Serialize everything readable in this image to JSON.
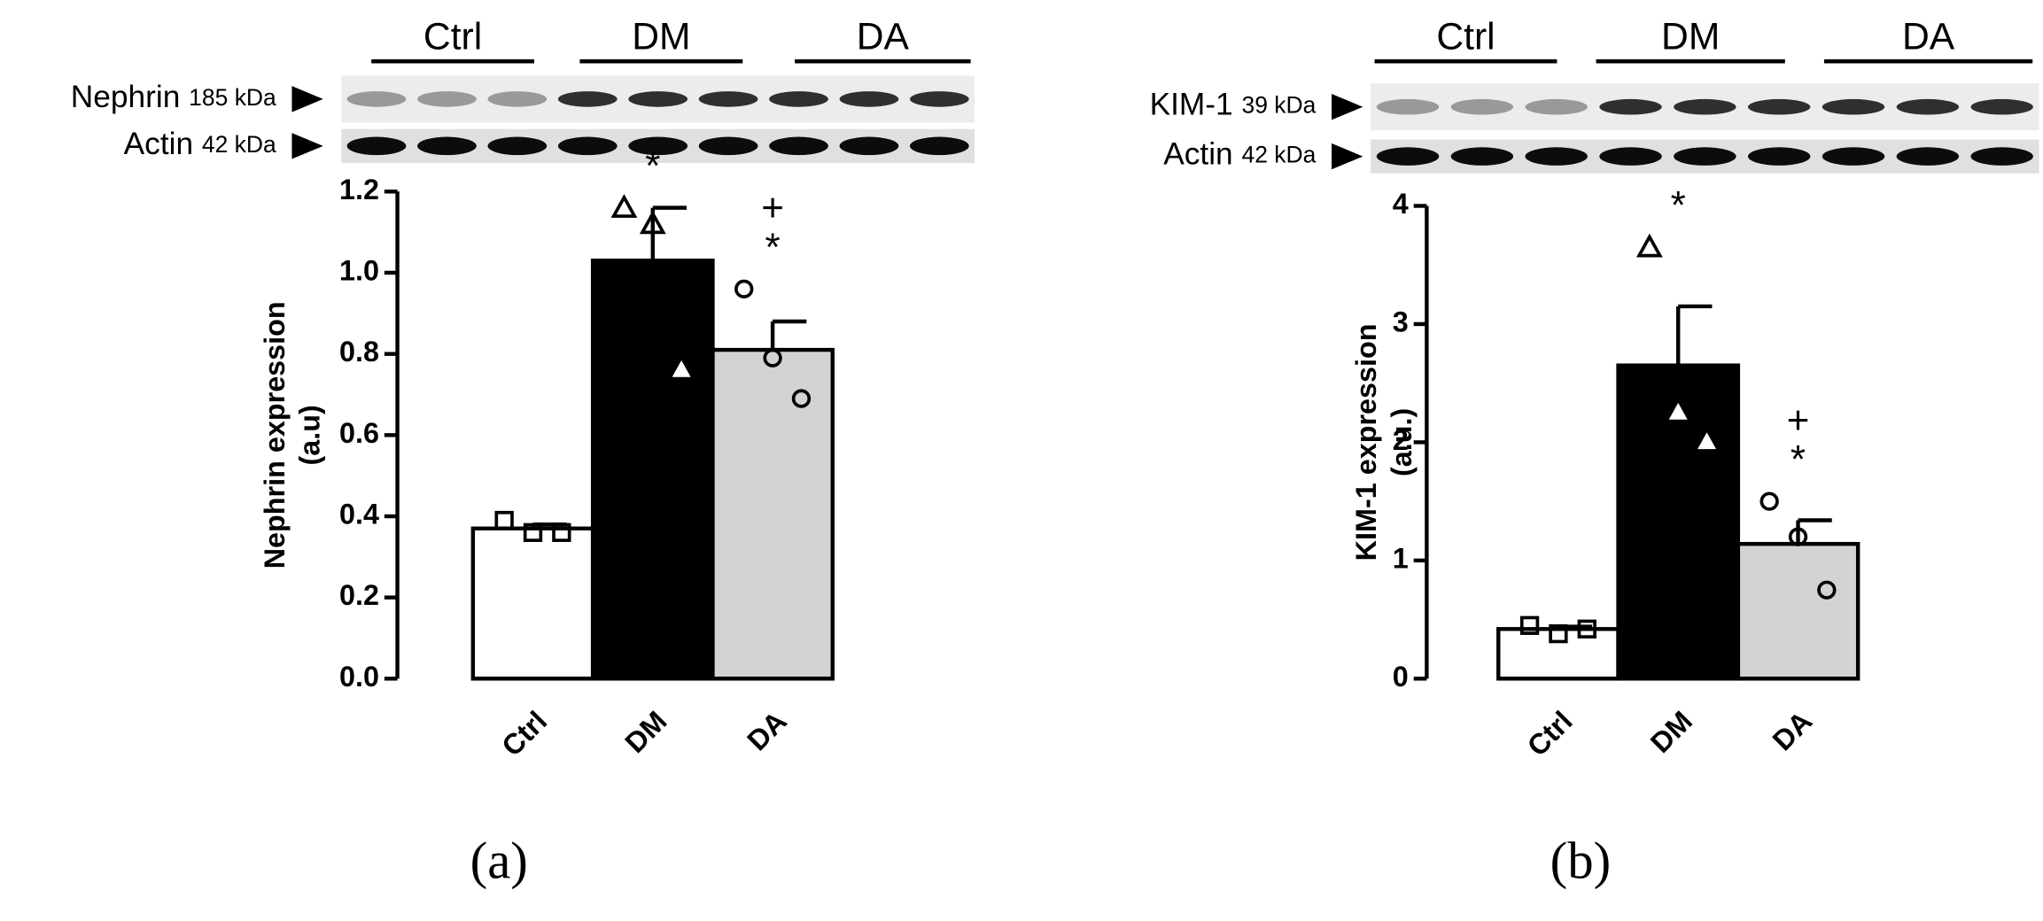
{
  "chart_data": [
    {
      "type": "bar",
      "panel_label": "(a)",
      "blot": [
        {
          "name": "Nephrin",
          "size": "185 kDa"
        },
        {
          "name": "Actin",
          "size": "42 kDa"
        }
      ],
      "ylabel": [
        "Nephrin expression",
        "(a.u)"
      ],
      "categories": [
        "Ctrl",
        "DM",
        "DA"
      ],
      "values": [
        0.37,
        1.03,
        0.81
      ],
      "errors": [
        0.01,
        0.13,
        0.07
      ],
      "colors": [
        "#ffffff",
        "#000000",
        "#d3d3d3"
      ],
      "points": [
        [
          0.39,
          0.36,
          0.36
        ],
        [
          1.16,
          1.12,
          0.76
        ],
        [
          0.96,
          0.79,
          0.69
        ]
      ],
      "point_markers": [
        "square",
        "triangle",
        "circle"
      ],
      "annotations": [
        null,
        [
          "*"
        ],
        [
          "+",
          "*"
        ]
      ],
      "ylim": [
        0,
        1.2
      ],
      "yticks": [
        {
          "value": 0,
          "label": "0.0"
        },
        0.2,
        0.4,
        0.6,
        0.8,
        {
          "value": 1,
          "label": "1.0"
        },
        1.2
      ]
    },
    {
      "type": "bar",
      "panel_label": "(b)",
      "blot": [
        {
          "name": "KIM-1",
          "size": "39 kDa"
        },
        {
          "name": "Actin",
          "size": "42 kDa"
        }
      ],
      "ylabel": [
        "KIM-1 expression",
        "(a.u.)"
      ],
      "categories": [
        "Ctrl",
        "DM",
        "DA"
      ],
      "values": [
        0.42,
        2.65,
        1.14
      ],
      "errors": [
        0.02,
        0.5,
        0.2
      ],
      "colors": [
        "#ffffff",
        "#000000",
        "#d3d3d3"
      ],
      "points": [
        [
          0.45,
          0.38,
          0.42
        ],
        [
          3.65,
          2.25,
          2.0
        ],
        [
          1.5,
          1.2,
          0.75
        ]
      ],
      "point_markers": [
        "square",
        "triangle",
        "circle"
      ],
      "annotations": [
        null,
        [
          "*"
        ],
        [
          "+",
          "*"
        ]
      ],
      "ylim": [
        0,
        4
      ],
      "yticks": [
        0,
        1,
        2,
        3,
        4
      ]
    }
  ]
}
